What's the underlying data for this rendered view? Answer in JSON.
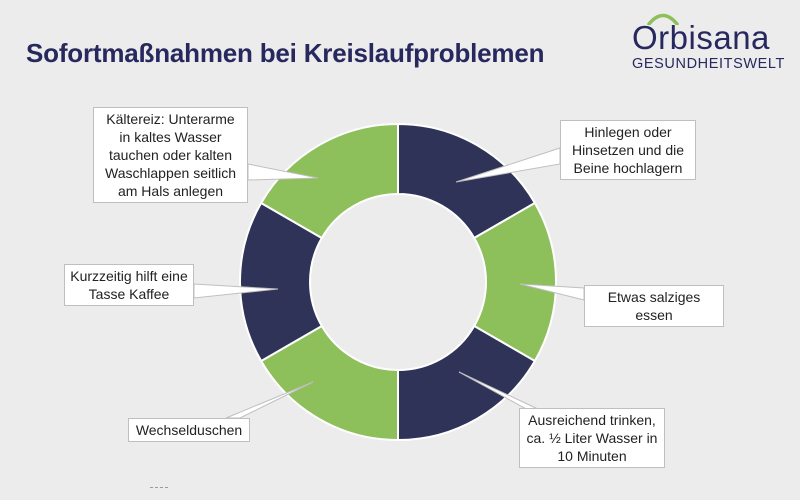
{
  "title": "Sofortmaßnahmen bei Kreislaufproblemen",
  "brand": {
    "name": "Orbisana",
    "subtitle": "GESUNDHEITSWELT",
    "icon": "sun-arc-icon"
  },
  "colors": {
    "dark": "#2f3358",
    "green": "#8dbf5a",
    "title": "#27285e"
  },
  "chart_data": {
    "type": "pie",
    "style": "donut",
    "title": "Sofortmaßnahmen bei Kreislaufproblemen",
    "slices": [
      {
        "label": "Hinlegen oder Hinsetzen und die Beine hochlagern",
        "value": 1,
        "color": "#2f3358"
      },
      {
        "label": "Etwas salziges essen",
        "value": 1,
        "color": "#8dbf5a"
      },
      {
        "label": "Ausreichend trinken, ca. ½ Liter Wasser in 10 Minuten",
        "value": 1,
        "color": "#2f3358"
      },
      {
        "label": "Wechselduschen",
        "value": 1,
        "color": "#8dbf5a"
      },
      {
        "label": "Kurzzeitig hilft eine Tasse Kaffee",
        "value": 1,
        "color": "#2f3358"
      },
      {
        "label": "Kältereiz: Unterarme in kaltes Wasser tauchen oder kalten Waschlappen seitlich am Hals anlegen",
        "value": 1,
        "color": "#8dbf5a"
      }
    ]
  },
  "callouts": {
    "c0": "Hinlegen oder\nHinsetzen und die\nBeine hochlagern",
    "c1": "Etwas salziges essen",
    "c2": "Ausreichend trinken,\nca. ½ Liter Wasser in\n10 Minuten",
    "c3": "Wechselduschen",
    "c4": "Kurzzeitig hilft eine\nTasse Kaffee",
    "c5": "Kältereiz: Unterarme\nin kaltes Wasser\ntauchen oder kalten\nWaschlappen seitlich\nam Hals anlegen"
  }
}
